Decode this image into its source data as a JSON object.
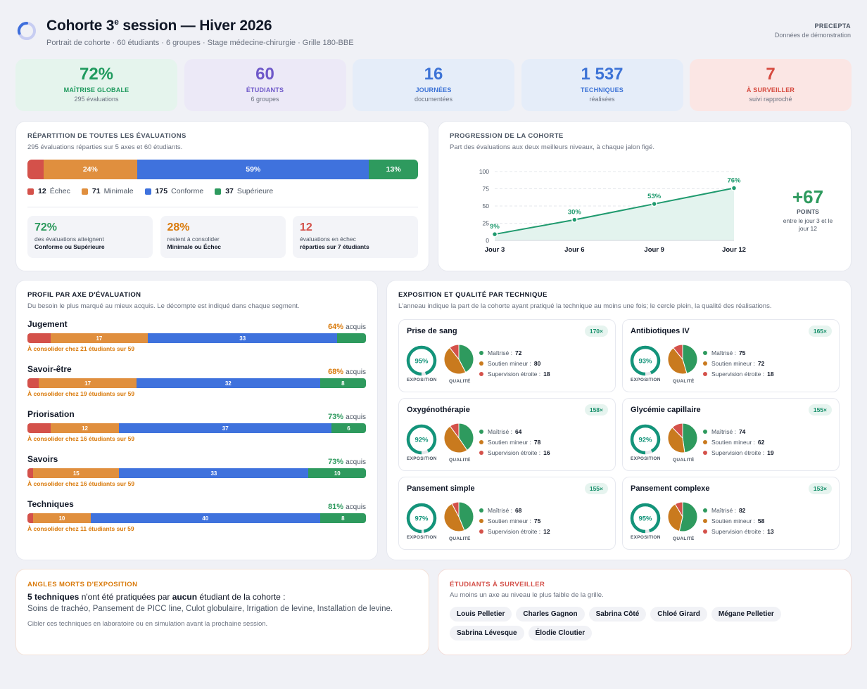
{
  "header": {
    "title_pre": "Cohorte 3",
    "title_sup": "e",
    "title_post": " session — Hiver 2026",
    "subtitle": "Portrait de cohorte · 60 étudiants · 6 groupes · Stage médecine-chirurgie · Grille 180-BBE",
    "brand": "PRECEPTA",
    "brand_sub": "Données de démonstration"
  },
  "kpis": [
    {
      "value": "72%",
      "label": "MAÎTRISE GLOBALE",
      "sub": "295 évaluations",
      "color": "#1f9a5e",
      "bg": "#e5f4ed"
    },
    {
      "value": "60",
      "label": "ÉTUDIANTS",
      "sub": "6 groupes",
      "color": "#6e58c9",
      "bg": "#ece9f7"
    },
    {
      "value": "16",
      "label": "JOURNÉES",
      "sub": "documentées",
      "color": "#3d73d6",
      "bg": "#e5edf9"
    },
    {
      "value": "1 537",
      "label": "TECHNIQUES",
      "sub": "réalisées",
      "color": "#3d73d6",
      "bg": "#e5edf9"
    },
    {
      "value": "7",
      "label": "À SURVEILLER",
      "sub": "suivi rapproché",
      "color": "#d64a3f",
      "bg": "#fbe6e4"
    }
  ],
  "distribution": {
    "title": "RÉPARTITION DE TOUTES LES ÉVALUATIONS",
    "desc": "295 évaluations réparties sur 5 axes et 60 étudiants.",
    "segments": [
      {
        "label": "Échec",
        "count": "12",
        "pct_label": "",
        "value": 12,
        "color": "#d4514a"
      },
      {
        "label": "Minimale",
        "count": "71",
        "pct_label": "24%",
        "value": 71,
        "color": "#e08f3e"
      },
      {
        "label": "Conforme",
        "count": "175",
        "pct_label": "59%",
        "value": 175,
        "color": "#3f72dd"
      },
      {
        "label": "Supérieure",
        "count": "37",
        "pct_label": "13%",
        "value": 37,
        "color": "#2e9a5e"
      }
    ],
    "minis": [
      {
        "value": "72%",
        "desc": "des évaluations atteignent",
        "bold": "Conforme ou Supérieure",
        "color": "#2e9a5e"
      },
      {
        "value": "28%",
        "desc": "restent à consolider",
        "bold": "Minimale ou Échec",
        "color": "#d97a0b"
      },
      {
        "value": "12",
        "desc": "évaluations en échec",
        "bold": "réparties sur 7 étudiants",
        "color": "#d4514a"
      }
    ]
  },
  "progression": {
    "title": "PROGRESSION DE LA COHORTE",
    "desc": "Part des évaluations aux deux meilleurs niveaux, à chaque jalon figé.",
    "delta": "+67",
    "delta_label": "POINTS",
    "delta_desc": "entre le jour 3 et le jour 12"
  },
  "chart_data": {
    "type": "area",
    "x": [
      "Jour 3",
      "Jour 6",
      "Jour 9",
      "Jour 12"
    ],
    "values": [
      9,
      30,
      53,
      76
    ],
    "point_labels": [
      "9%",
      "30%",
      "53%",
      "76%"
    ],
    "yticks": [
      "0",
      "25",
      "50",
      "75",
      "100"
    ],
    "ylim": [
      0,
      100
    ],
    "grid": true,
    "color": "#1f9a6e"
  },
  "profile": {
    "title": "PROFIL PAR AXE D'ÉVALUATION",
    "desc": "Du besoin le plus marqué au mieux acquis. Le décompte est indiqué dans chaque segment.",
    "acquis_word": "acquis",
    "axes": [
      {
        "name": "Jugement",
        "pct": "64%",
        "pct_color": "#d97a0b",
        "warn": "À consolider chez 21 étudiants sur 59",
        "segs": [
          {
            "v": 4,
            "t": ""
          },
          {
            "v": 17,
            "t": "17"
          },
          {
            "v": 33,
            "t": "33"
          },
          {
            "v": 5,
            "t": ""
          }
        ]
      },
      {
        "name": "Savoir-être",
        "pct": "68%",
        "pct_color": "#d97a0b",
        "warn": "À consolider chez 19 étudiants sur 59",
        "segs": [
          {
            "v": 2,
            "t": ""
          },
          {
            "v": 17,
            "t": "17"
          },
          {
            "v": 32,
            "t": "32"
          },
          {
            "v": 8,
            "t": "8"
          }
        ]
      },
      {
        "name": "Priorisation",
        "pct": "73%",
        "pct_color": "#2e9a5e",
        "warn": "À consolider chez 16 étudiants sur 59",
        "segs": [
          {
            "v": 4,
            "t": ""
          },
          {
            "v": 12,
            "t": "12"
          },
          {
            "v": 37,
            "t": "37"
          },
          {
            "v": 6,
            "t": "6"
          }
        ]
      },
      {
        "name": "Savoirs",
        "pct": "73%",
        "pct_color": "#2e9a5e",
        "warn": "À consolider chez 16 étudiants sur 59",
        "segs": [
          {
            "v": 1,
            "t": ""
          },
          {
            "v": 15,
            "t": "15"
          },
          {
            "v": 33,
            "t": "33"
          },
          {
            "v": 10,
            "t": "10"
          }
        ]
      },
      {
        "name": "Techniques",
        "pct": "81%",
        "pct_color": "#2e9a5e",
        "warn": "À consolider chez 11 étudiants sur 59",
        "segs": [
          {
            "v": 1,
            "t": ""
          },
          {
            "v": 10,
            "t": "10"
          },
          {
            "v": 40,
            "t": "40"
          },
          {
            "v": 8,
            "t": "8"
          }
        ]
      }
    ]
  },
  "exposure": {
    "title": "EXPOSITION ET QUALITÉ PAR TECHNIQUE",
    "desc": "L'anneau indique la part de la cohorte ayant pratiqué la technique au moins une fois; le cercle plein, la qualité des réalisations.",
    "cap_exposure": "EXPOSITION",
    "cap_quality": "QUALITÉ",
    "lab_m": "Maîtrisé :",
    "lab_s": "Soutien mineur :",
    "lab_e": "Supervision étroite :",
    "techniques": [
      {
        "name": "Prise de sang",
        "badge": "170×",
        "exposure": "95%",
        "exp_value": 95,
        "m": "72",
        "s": "80",
        "e": "18"
      },
      {
        "name": "Antibiotiques IV",
        "badge": "165×",
        "exposure": "93%",
        "exp_value": 93,
        "m": "75",
        "s": "72",
        "e": "18"
      },
      {
        "name": "Oxygénothérapie",
        "badge": "158×",
        "exposure": "92%",
        "exp_value": 92,
        "m": "64",
        "s": "78",
        "e": "16"
      },
      {
        "name": "Glycémie capillaire",
        "badge": "155×",
        "exposure": "92%",
        "exp_value": 92,
        "m": "74",
        "s": "62",
        "e": "19"
      },
      {
        "name": "Pansement simple",
        "badge": "155×",
        "exposure": "97%",
        "exp_value": 97,
        "m": "68",
        "s": "75",
        "e": "12"
      },
      {
        "name": "Pansement complexe",
        "badge": "153×",
        "exposure": "95%",
        "exp_value": 95,
        "m": "82",
        "s": "58",
        "e": "13"
      }
    ]
  },
  "blind_spots": {
    "title": "ANGLES MORTS D'EXPOSITION",
    "lead_bold": "5 techniques",
    "lead_mid": " n'ont été pratiquées par ",
    "lead_bold2": "aucun",
    "lead_end": " étudiant de la cohorte :",
    "list": "Soins de trachéo, Pansement de PICC line, Culot globulaire, Irrigation de levine, Installation de levine.",
    "note": "Cibler ces techniques en laboratoire ou en simulation avant la prochaine session."
  },
  "watch": {
    "title": "ÉTUDIANTS À SURVEILLER",
    "desc": "Au moins un axe au niveau le plus faible de la grille.",
    "students": [
      "Louis Pelletier",
      "Charles Gagnon",
      "Sabrina Côté",
      "Chloé Girard",
      "Mégane Pelletier",
      "Sabrina Lévesque",
      "Élodie Cloutier"
    ]
  },
  "colors": {
    "fail": "#d4514a",
    "min": "#e08f3e",
    "conf": "#3f72dd",
    "sup": "#2e9a5e",
    "teal": "#13947a",
    "qm": "#2e9a5e",
    "qs": "#c97a1e",
    "qe": "#d4514a"
  }
}
